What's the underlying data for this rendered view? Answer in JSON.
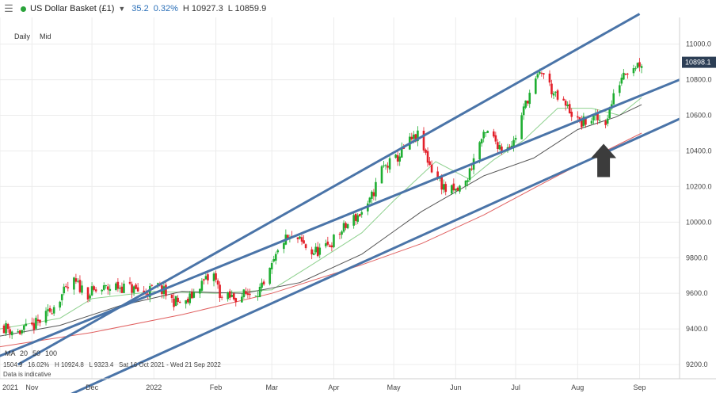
{
  "header": {
    "menu_icon": "hamburger-menu-icon",
    "status_color": "#2aa33a",
    "instrument": "US Dollar Basket (£1)",
    "dropdown_icon": "chevron-down-icon",
    "change": "35.2",
    "change_pct": "0.32%",
    "high": "H 10927.3",
    "low": "L 10859.9"
  },
  "toolbar": {
    "interval": "Daily",
    "price_type": "Mid"
  },
  "last_price": "10898.1",
  "indicators": {
    "label": "MA",
    "periods": [
      "20",
      "50",
      "100"
    ],
    "colors": {
      "ma20": "#8fd18f",
      "ma50": "#555555",
      "ma100": "#e06060"
    }
  },
  "stats": {
    "text": "1504.9   16.02%   H 10924.8   L 9323.4   Sat 16 Oct 2021 - Wed 21 Sep 2022",
    "note": "Data is indicative"
  },
  "chart_data": {
    "type": "candlestick",
    "x_ticks": [
      "2021",
      "Nov",
      "Dec",
      "2022",
      "Feb",
      "Mar",
      "Apr",
      "May",
      "Jun",
      "Jul",
      "Aug",
      "Sep"
    ],
    "x_tick_dates": [
      "2021-10-16",
      "2021-11-01",
      "2021-12-01",
      "2022-01-01",
      "2022-02-01",
      "2022-03-01",
      "2022-04-01",
      "2022-05-01",
      "2022-06-01",
      "2022-07-01",
      "2022-08-01",
      "2022-09-01"
    ],
    "xlim": [
      "2021-10-16",
      "2022-09-21"
    ],
    "y_ticks": [
      9200,
      9400,
      9600,
      9800,
      10000,
      10200,
      10400,
      10600,
      10800,
      11000
    ],
    "y_tick_labels": [
      "9200.0",
      "9400.0",
      "9600.0",
      "9800.0",
      "10000.0",
      "10200.0",
      "10400.0",
      "10600.0",
      "10800.0",
      "11000.0"
    ],
    "ylim": [
      9120,
      11150
    ],
    "price_path": [
      [
        "2021-10-16",
        9420
      ],
      [
        "2021-10-25",
        9380
      ],
      [
        "2021-11-01",
        9410
      ],
      [
        "2021-11-08",
        9470
      ],
      [
        "2021-11-15",
        9580
      ],
      [
        "2021-11-22",
        9660
      ],
      [
        "2021-11-29",
        9600
      ],
      [
        "2021-12-06",
        9620
      ],
      [
        "2021-12-13",
        9640
      ],
      [
        "2021-12-20",
        9630
      ],
      [
        "2021-12-27",
        9600
      ],
      [
        "2022-01-03",
        9640
      ],
      [
        "2022-01-10",
        9560
      ],
      [
        "2022-01-17",
        9540
      ],
      [
        "2022-01-24",
        9650
      ],
      [
        "2022-01-31",
        9700
      ],
      [
        "2022-02-04",
        9570
      ],
      [
        "2022-02-11",
        9580
      ],
      [
        "2022-02-18",
        9600
      ],
      [
        "2022-02-25",
        9630
      ],
      [
        "2022-03-03",
        9800
      ],
      [
        "2022-03-07",
        9900
      ],
      [
        "2022-03-14",
        9900
      ],
      [
        "2022-03-21",
        9830
      ],
      [
        "2022-03-28",
        9850
      ],
      [
        "2022-04-04",
        9940
      ],
      [
        "2022-04-11",
        10020
      ],
      [
        "2022-04-18",
        10080
      ],
      [
        "2022-04-25",
        10300
      ],
      [
        "2022-05-02",
        10350
      ],
      [
        "2022-05-09",
        10450
      ],
      [
        "2022-05-13",
        10480
      ],
      [
        "2022-05-20",
        10300
      ],
      [
        "2022-05-27",
        10180
      ],
      [
        "2022-06-01",
        10170
      ],
      [
        "2022-06-06",
        10220
      ],
      [
        "2022-06-13",
        10450
      ],
      [
        "2022-06-17",
        10500
      ],
      [
        "2022-06-24",
        10420
      ],
      [
        "2022-06-30",
        10450
      ],
      [
        "2022-07-07",
        10700
      ],
      [
        "2022-07-14",
        10850
      ],
      [
        "2022-07-21",
        10700
      ],
      [
        "2022-07-28",
        10630
      ],
      [
        "2022-08-02",
        10550
      ],
      [
        "2022-08-08",
        10580
      ],
      [
        "2022-08-15",
        10570
      ],
      [
        "2022-08-19",
        10700
      ],
      [
        "2022-08-24",
        10850
      ],
      [
        "2022-08-29",
        10880
      ],
      [
        "2022-09-02",
        10898.1
      ]
    ],
    "series": [
      {
        "name": "MA 20",
        "color": "#8fd18f",
        "points": [
          [
            "2021-10-16",
            9400
          ],
          [
            "2021-11-15",
            9460
          ],
          [
            "2021-12-01",
            9570
          ],
          [
            "2022-01-01",
            9610
          ],
          [
            "2022-02-01",
            9600
          ],
          [
            "2022-03-01",
            9620
          ],
          [
            "2022-03-21",
            9760
          ],
          [
            "2022-04-15",
            9940
          ],
          [
            "2022-05-01",
            10120
          ],
          [
            "2022-05-22",
            10340
          ],
          [
            "2022-06-08",
            10240
          ],
          [
            "2022-06-20",
            10350
          ],
          [
            "2022-07-05",
            10460
          ],
          [
            "2022-07-22",
            10640
          ],
          [
            "2022-08-08",
            10640
          ],
          [
            "2022-08-22",
            10600
          ],
          [
            "2022-09-02",
            10700
          ]
        ]
      },
      {
        "name": "MA 50",
        "color": "#555555",
        "points": [
          [
            "2021-10-16",
            9360
          ],
          [
            "2021-11-15",
            9420
          ],
          [
            "2021-12-15",
            9530
          ],
          [
            "2022-01-15",
            9610
          ],
          [
            "2022-02-15",
            9600
          ],
          [
            "2022-03-15",
            9660
          ],
          [
            "2022-04-15",
            9820
          ],
          [
            "2022-05-15",
            10060
          ],
          [
            "2022-06-15",
            10260
          ],
          [
            "2022-07-10",
            10360
          ],
          [
            "2022-08-01",
            10520
          ],
          [
            "2022-08-20",
            10590
          ],
          [
            "2022-09-02",
            10660
          ]
        ]
      },
      {
        "name": "MA 100",
        "color": "#e06060",
        "points": [
          [
            "2021-10-16",
            9300
          ],
          [
            "2021-12-01",
            9380
          ],
          [
            "2022-01-15",
            9480
          ],
          [
            "2022-03-01",
            9600
          ],
          [
            "2022-04-15",
            9760
          ],
          [
            "2022-05-15",
            9880
          ],
          [
            "2022-06-15",
            10040
          ],
          [
            "2022-07-15",
            10220
          ],
          [
            "2022-08-15",
            10400
          ],
          [
            "2022-09-02",
            10500
          ]
        ]
      }
    ],
    "annotations": [
      {
        "type": "trendline",
        "name": "upper channel line",
        "from": [
          "2021-10-25",
          9200
        ],
        "to": [
          "2022-09-01",
          11170
        ],
        "color": "#4a74a8"
      },
      {
        "type": "trendline",
        "name": "lower channel line",
        "from": [
          "2021-10-01",
          9180
        ],
        "to": [
          "2022-09-21",
          10800
        ],
        "color": "#4a74a8"
      },
      {
        "type": "trendline",
        "name": "channel support line",
        "from": [
          "2021-11-10",
          8980
        ],
        "to": [
          "2022-09-21",
          10580
        ],
        "color": "#4a74a8"
      },
      {
        "type": "arrow",
        "name": "up arrow",
        "tip": [
          "2022-08-14",
          10440
        ],
        "color": "#3c3c3c"
      }
    ],
    "grid": true,
    "price_axis_position": "right"
  }
}
